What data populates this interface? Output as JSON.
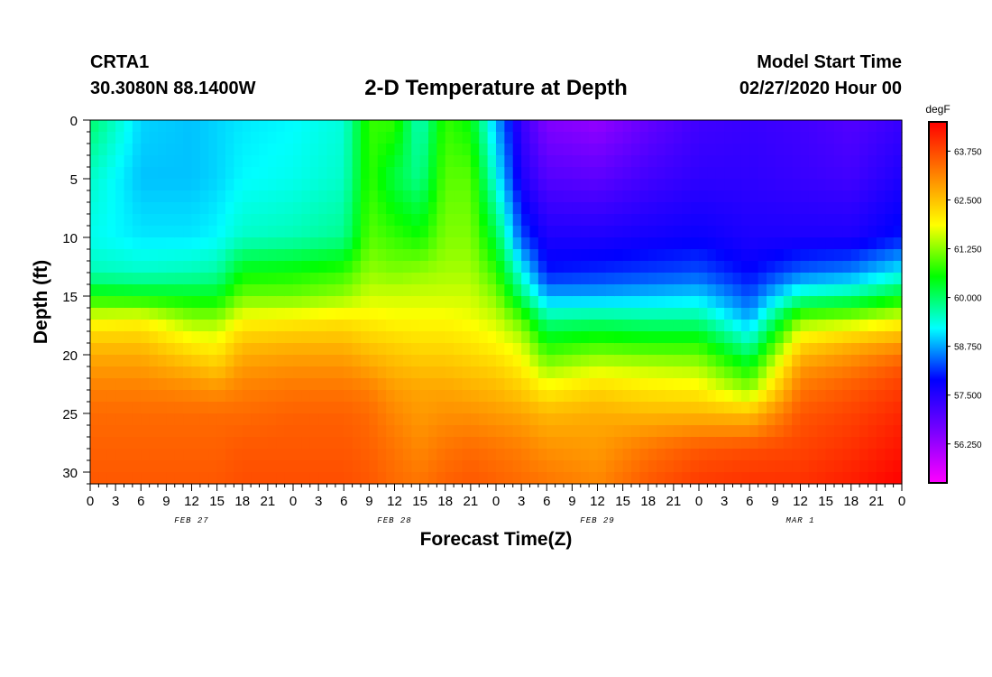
{
  "header": {
    "station": "CRTA1",
    "coords": "30.3080N 88.1400W",
    "title": "2-D Temperature at Depth",
    "model_start_label": "Model Start Time",
    "model_start_value": "02/27/2020 Hour 00"
  },
  "chart_data": {
    "type": "heatmap",
    "title": "2-D Temperature at Depth",
    "xlabel": "Forecast Time(Z)",
    "ylabel": "Depth (ft)",
    "x_hours": [
      0,
      3,
      6,
      9,
      12,
      15,
      18,
      21,
      24,
      27,
      30,
      33,
      36,
      39,
      42,
      45,
      48,
      51,
      54,
      57,
      60,
      63,
      66,
      69,
      72,
      75,
      78,
      81,
      84,
      87,
      90,
      93,
      96
    ],
    "x_tick_labels": [
      "0",
      "3",
      "6",
      "9",
      "12",
      "15",
      "18",
      "21",
      "0",
      "3",
      "6",
      "9",
      "12",
      "15",
      "18",
      "21",
      "0",
      "3",
      "6",
      "9",
      "12",
      "15",
      "18",
      "21",
      "0",
      "3",
      "6",
      "9",
      "12",
      "15",
      "18",
      "21",
      "0"
    ],
    "date_labels": [
      {
        "label": "FEB 27",
        "hour": 12
      },
      {
        "label": "FEB 28",
        "hour": 36
      },
      {
        "label": "FEB 29",
        "hour": 60
      },
      {
        "label": "MAR 1",
        "hour": 84
      }
    ],
    "xlim": [
      0,
      96
    ],
    "y_ticks": [
      0,
      5,
      10,
      15,
      20,
      25,
      30
    ],
    "ylim": [
      0,
      31
    ],
    "y_inverted": true,
    "colorbar": {
      "unit": "degF",
      "range": [
        55.25,
        64.5
      ],
      "tick_values": [
        56.25,
        57.5,
        58.75,
        60.0,
        61.25,
        62.5,
        63.75
      ],
      "tick_labels": [
        "56.250",
        "57.500",
        "58.750",
        "60.000",
        "61.250",
        "62.500",
        "63.750"
      ],
      "colormap": [
        "#ff00ff",
        "#7a00ff",
        "#0000ff",
        "#00ffff",
        "#00ff00",
        "#ffff00",
        "#ff8000",
        "#ff0000"
      ]
    },
    "depths": [
      0,
      5,
      10,
      13,
      15,
      17,
      19,
      21,
      23,
      25,
      28,
      31
    ],
    "profiles": [
      {
        "hour": 0,
        "temps": [
          60.0,
          59.5,
          59.3,
          59.6,
          60.6,
          61.8,
          62.5,
          62.9,
          63.2,
          63.4,
          63.5,
          63.6
        ]
      },
      {
        "hour": 6,
        "temps": [
          59.0,
          58.9,
          59.1,
          59.5,
          60.5,
          61.9,
          62.5,
          62.9,
          63.2,
          63.4,
          63.5,
          63.6
        ]
      },
      {
        "hour": 12,
        "temps": [
          58.9,
          58.9,
          59.1,
          59.6,
          60.4,
          61.3,
          62.0,
          62.6,
          63.1,
          63.4,
          63.5,
          63.6
        ]
      },
      {
        "hour": 15,
        "temps": [
          59.0,
          59.0,
          59.2,
          59.7,
          60.4,
          61.3,
          61.9,
          62.4,
          63.0,
          63.4,
          63.5,
          63.6
        ]
      },
      {
        "hour": 18,
        "temps": [
          59.1,
          59.2,
          59.5,
          60.5,
          61.1,
          61.9,
          62.5,
          62.9,
          63.2,
          63.4,
          63.6,
          63.7
        ]
      },
      {
        "hour": 24,
        "temps": [
          59.2,
          59.3,
          59.6,
          60.6,
          61.1,
          62.0,
          62.6,
          63.0,
          63.3,
          63.5,
          63.6,
          63.7
        ]
      },
      {
        "hour": 30,
        "temps": [
          59.4,
          59.5,
          59.8,
          60.8,
          61.3,
          62.1,
          62.6,
          63.0,
          63.3,
          63.5,
          63.6,
          63.7
        ]
      },
      {
        "hour": 33,
        "temps": [
          60.8,
          60.8,
          61.0,
          61.3,
          61.6,
          62.0,
          62.4,
          62.8,
          63.2,
          63.4,
          63.5,
          63.6
        ]
      },
      {
        "hour": 36,
        "temps": [
          60.8,
          60.2,
          60.8,
          61.2,
          61.6,
          61.9,
          62.3,
          62.6,
          62.9,
          63.1,
          63.3,
          63.4
        ]
      },
      {
        "hour": 39,
        "temps": [
          59.5,
          59.8,
          60.6,
          61.3,
          61.6,
          61.9,
          62.2,
          62.5,
          62.8,
          62.9,
          63.1,
          63.3
        ]
      },
      {
        "hour": 42,
        "temps": [
          60.8,
          61.0,
          61.2,
          61.4,
          61.6,
          61.9,
          62.2,
          62.5,
          62.8,
          63.0,
          63.3,
          63.5
        ]
      },
      {
        "hour": 45,
        "temps": [
          60.5,
          61.0,
          61.2,
          61.4,
          61.6,
          61.8,
          62.1,
          62.4,
          62.7,
          63.0,
          63.4,
          63.6
        ]
      },
      {
        "hour": 48,
        "temps": [
          58.8,
          59.3,
          60.2,
          60.8,
          61.2,
          61.6,
          61.9,
          62.3,
          62.6,
          62.9,
          63.3,
          63.5
        ]
      },
      {
        "hour": 51,
        "temps": [
          57.3,
          57.6,
          58.3,
          59.3,
          60.0,
          61.0,
          61.6,
          62.0,
          62.4,
          62.8,
          63.2,
          63.4
        ]
      },
      {
        "hour": 54,
        "temps": [
          56.5,
          57.0,
          57.6,
          58.0,
          58.8,
          59.8,
          60.6,
          61.3,
          62.0,
          62.6,
          63.0,
          63.3
        ]
      },
      {
        "hour": 60,
        "temps": [
          56.3,
          56.9,
          57.6,
          58.1,
          58.8,
          59.9,
          60.8,
          61.6,
          62.3,
          62.7,
          62.9,
          63.1
        ]
      },
      {
        "hour": 66,
        "temps": [
          56.8,
          57.2,
          57.7,
          58.2,
          58.9,
          59.8,
          60.7,
          61.5,
          62.1,
          62.6,
          63.3,
          63.6
        ]
      },
      {
        "hour": 72,
        "temps": [
          57.2,
          57.4,
          57.8,
          58.3,
          59.0,
          59.8,
          60.7,
          61.4,
          62.0,
          62.6,
          63.6,
          63.9
        ]
      },
      {
        "hour": 78,
        "temps": [
          57.3,
          57.4,
          57.6,
          57.9,
          58.3,
          58.8,
          59.6,
          60.5,
          61.3,
          62.5,
          63.7,
          64.0
        ]
      },
      {
        "hour": 84,
        "temps": [
          57.2,
          57.3,
          57.6,
          58.4,
          59.6,
          61.2,
          62.2,
          62.9,
          63.3,
          63.6,
          63.8,
          64.0
        ]
      },
      {
        "hour": 90,
        "temps": [
          57.0,
          57.2,
          57.6,
          58.6,
          59.8,
          61.4,
          62.6,
          63.2,
          63.6,
          63.8,
          64.0,
          64.2
        ]
      },
      {
        "hour": 96,
        "temps": [
          57.3,
          57.6,
          58.0,
          59.2,
          60.4,
          61.8,
          62.9,
          63.6,
          63.9,
          64.1,
          64.3,
          64.5
        ]
      }
    ]
  }
}
